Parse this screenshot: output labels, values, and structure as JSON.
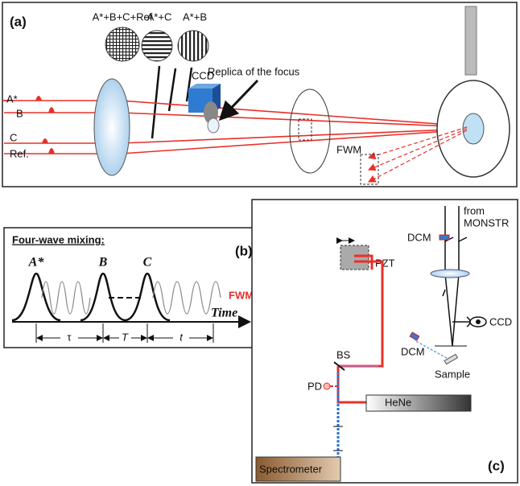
{
  "panel_a": {
    "label": "(a)",
    "patterns": [
      "A*+B+C+Ref",
      "A*+C",
      "A*+B"
    ],
    "ccd": "CCD",
    "replica": "Replica of the focus",
    "beams": [
      "A*",
      "B",
      "C",
      "Ref."
    ],
    "fwm": "FWM"
  },
  "panel_b": {
    "title": "Four-wave mixing:",
    "label": "(b)",
    "pulses": [
      "A*",
      "B",
      "C"
    ],
    "fwm": "FWM",
    "axis": "Time",
    "delays": [
      "τ",
      "T",
      "t"
    ]
  },
  "panel_c": {
    "source": [
      "from",
      "MONSTR"
    ],
    "dcm_top": "DCM",
    "pzt": "PZT",
    "ccd": "CCD",
    "dcm_bottom": "DCM",
    "sample": "Sample",
    "pd": "PD",
    "bs": "BS",
    "laser": "HeNe",
    "spectrometer": "Spectrometer",
    "label": "(c)"
  }
}
